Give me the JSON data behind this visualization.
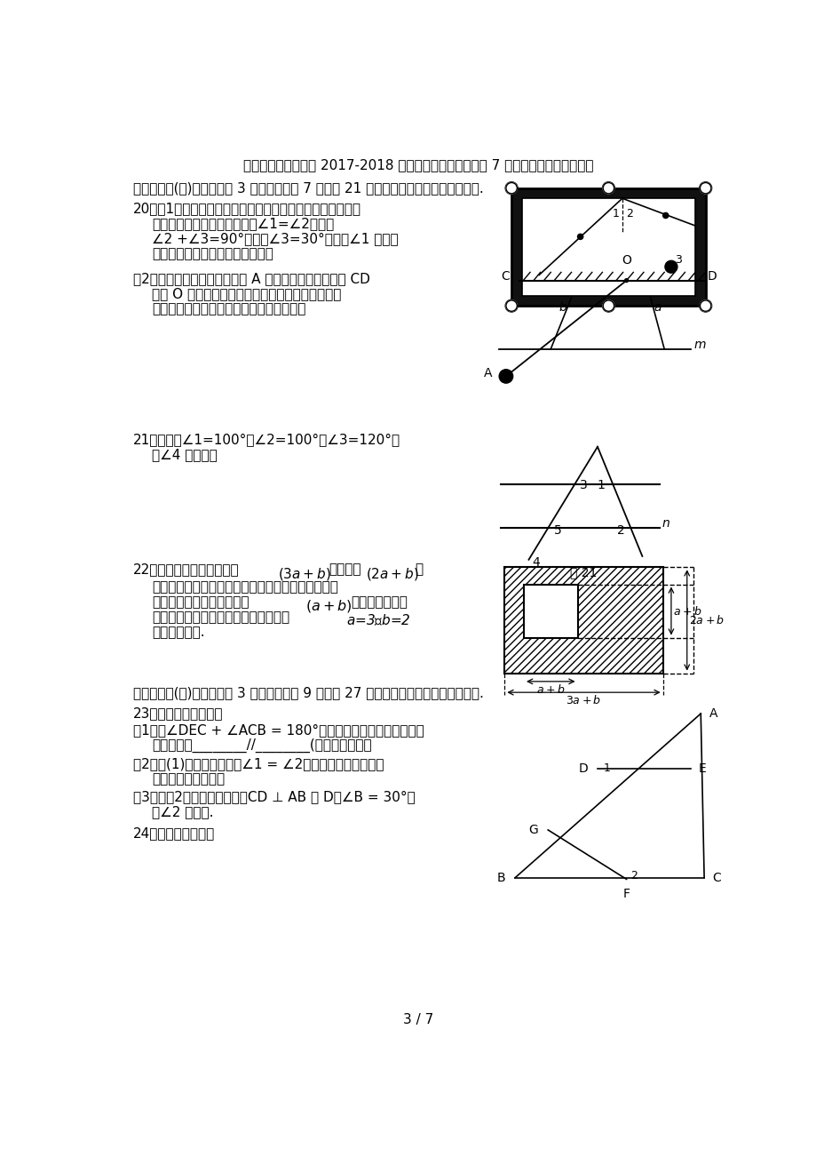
{
  "title": "广东省佛山市顺德区 2017-2018 学年七年级数学下学期第 7 周教研联盟测试新人教版",
  "page": "3 / 7",
  "bg_color": "#ffffff",
  "section4_header": "四、解答题(二)（本大题共 3 小题，每小题 7 分，共 21 分）请在答题卡相应位置上作答.",
  "q20_1_lines": [
    "20．（1）如图所示，选择适当的方向击打白球，可以使白球",
    "反弹后将黑球撞入袋中，此时∠1=∠2，并且",
    "∠2 +∠3=90°。如果∠3=30°，那么∠1 应等于",
    "多少度，才能保证黑球直接入袋？"
  ],
  "q20_2_lines": [
    "（2）如图，打台球时，小球由 A 点出发撞击到台球桌边 CD",
    "的点 O 处，请用尺规作图的方法作出小球反弹后的",
    "运动方向（不写作法，但要保留作图痕迹）"
  ],
  "q21_lines": [
    "21．如图，∠1=100°，∠2=100°，∠3=120°，",
    "求∠4 的度数。"
  ],
  "q22_lines": [
    "22．如图，某市有一块长为(3a + b)米，宽为(2a + b)米",
    "的长方形地块，规划部门计划将阴影部分进行绿化，",
    "中间将修建一座底座边长为(a + b)的正方形雕像，",
    "则绿化的面积是多少平方米？并求出当a =3，b =2",
    "时的绿化面积."
  ],
  "section5_header": "五、解答题(三)（本大题共 3 小题，每小题 9 分，共 27 分）请在答题卡相应位置上作答.",
  "q23_lines": [
    "23．如图回答以下问题",
    "（1）若∠DEC + ∠ACB = 180°，可以得到哪两条线段平行？",
    "直接填空：________//________(不用说明理由）",
    "（2）在(1)的结论下，如果∠1 = ∠2，又能得到哪两条线段",
    "平行，请说明理由。",
    "（3）在（2）的结论下，如果CD ⊥ AB 于 D，∠B = 30°，",
    "求∠2 的度数."
  ],
  "q24": "24．观察以下等式："
}
